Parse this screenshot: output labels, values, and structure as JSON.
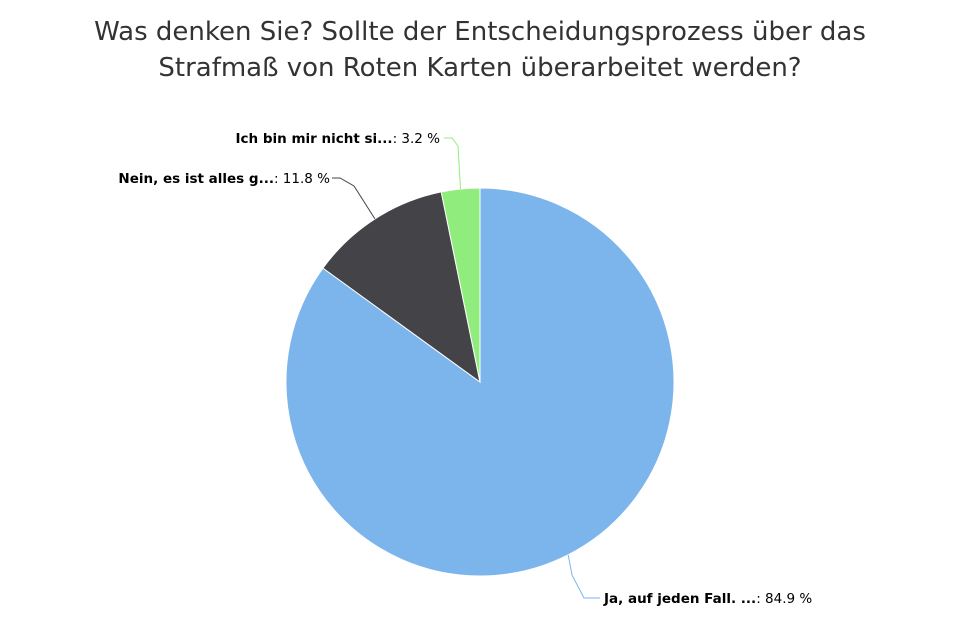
{
  "chart_data": {
    "type": "pie",
    "title_lines": [
      "Was denken Sie? Sollte der Entscheidungsprozess über das",
      "Strafmaß von Roten Karten überarbeitet werden?"
    ],
    "slices": [
      {
        "label": "Ja, auf jeden Fall. ...",
        "value": 84.9,
        "value_text": "84.9 %",
        "color": "#7cb5ec"
      },
      {
        "label": "Nein, es ist alles g...",
        "value": 11.8,
        "value_text": "11.8 %",
        "color": "#434348"
      },
      {
        "label": "Ich bin mir nicht si...",
        "value": 3.2,
        "value_text": "3.2 %",
        "color": "#90ed7d"
      }
    ],
    "legend": "none",
    "start_angle": "12 o'clock, clockwise"
  }
}
